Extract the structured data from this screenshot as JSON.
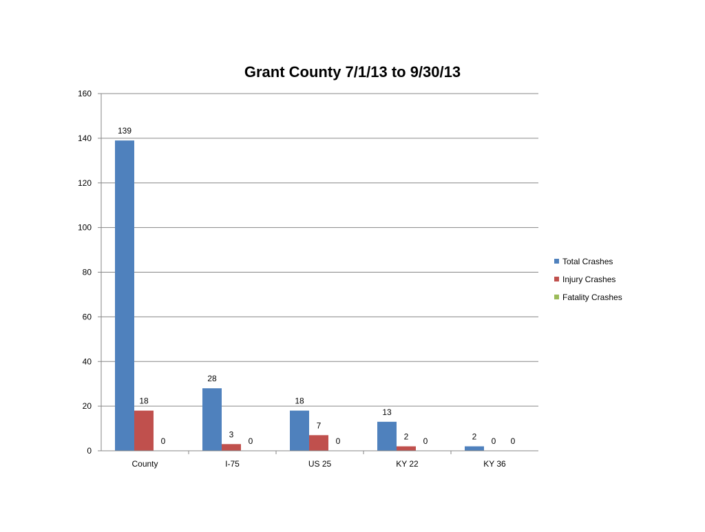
{
  "chart_data": {
    "type": "bar",
    "title": "Grant County 7/1/13 to 9/30/13",
    "xlabel": "",
    "ylabel": "",
    "categories": [
      "County",
      "I-75",
      "US 25",
      "KY 22",
      "KY 36"
    ],
    "series": [
      {
        "name": "Total Crashes",
        "values": [
          139,
          28,
          18,
          13,
          2
        ],
        "color": "#4f81bd"
      },
      {
        "name": "Injury Crashes",
        "values": [
          18,
          3,
          7,
          2,
          0
        ],
        "color": "#c0504d"
      },
      {
        "name": "Fatality Crashes",
        "values": [
          0,
          0,
          0,
          0,
          0
        ],
        "color": "#9bbb59"
      }
    ],
    "ylim": [
      0,
      160
    ],
    "yticks": [
      "0",
      "20",
      "40",
      "60",
      "80",
      "100",
      "120",
      "140",
      "160"
    ],
    "grid": true,
    "legend_position": "right",
    "data_labels": true
  }
}
